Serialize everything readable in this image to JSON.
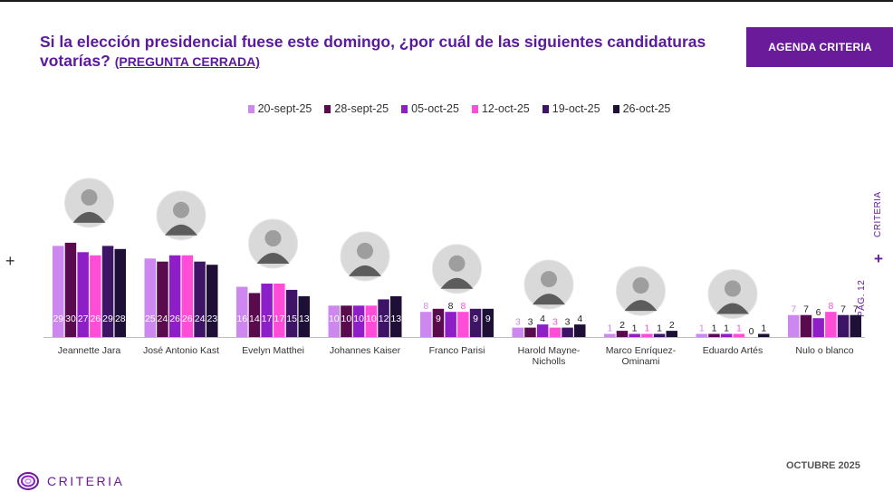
{
  "header": {
    "title": "Si la elección presidencial fuese este domingo, ¿por cuál de las siguientes candidaturas votarías?",
    "subtitle": "(PREGUNTA CERRADA)",
    "badge": "AGENDA CRITERIA"
  },
  "side": {
    "page": "PÁG. 12",
    "brand": "CRITERIA"
  },
  "footer": {
    "month": "OCTUBRE 2025",
    "logo_text": "CRITERIA"
  },
  "colors": {
    "title": "#5b1a9e",
    "accent": "#6a1b9a",
    "series": [
      "#cc88ee",
      "#5a0b4d",
      "#8e1fc6",
      "#ff4dd8",
      "#3d1466",
      "#1e0f36"
    ]
  },
  "chart_data": {
    "type": "bar",
    "categories": [
      "Jeannette Jara",
      "José Antonio Kast",
      "Evelyn Matthei",
      "Johannes Kaiser",
      "Franco Parisi",
      "Harold Mayne-Nicholls",
      "Marco Enríquez-Ominami",
      "Eduardo Artés",
      "Nulo o blanco"
    ],
    "series": [
      {
        "name": "20-sept-25",
        "values": [
          29,
          25,
          16,
          10,
          8,
          3,
          1,
          1,
          7
        ]
      },
      {
        "name": "28-sept-25",
        "values": [
          30,
          24,
          14,
          10,
          9,
          3,
          2,
          1,
          7
        ]
      },
      {
        "name": "05-oct-25",
        "values": [
          27,
          26,
          17,
          10,
          8,
          4,
          1,
          1,
          6
        ]
      },
      {
        "name": "12-oct-25",
        "values": [
          26,
          26,
          17,
          10,
          8,
          3,
          1,
          1,
          8
        ]
      },
      {
        "name": "19-oct-25",
        "values": [
          29,
          24,
          15,
          12,
          9,
          3,
          1,
          0,
          7
        ]
      },
      {
        "name": "26-oct-25",
        "values": [
          28,
          23,
          13,
          13,
          9,
          4,
          2,
          1,
          7
        ]
      }
    ],
    "legend_position": "top-center",
    "grid": false
  }
}
